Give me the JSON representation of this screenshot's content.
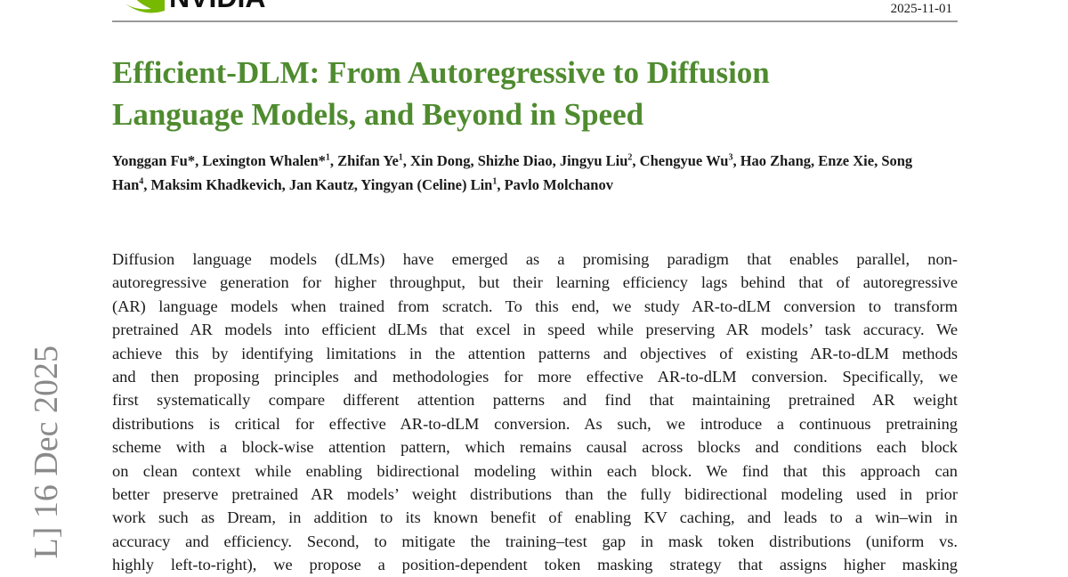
{
  "header": {
    "logo": "NVIDIA",
    "date": "2025-11-01"
  },
  "side_stamp": "L] 16 Dec 2025",
  "title": {
    "lines": [
      "Efficient-DLM: From Autoregressive to Diffusion",
      "Language Models, and Beyond in Speed"
    ]
  },
  "authors": [
    {
      "text": "Yonggan Fu*, Lexington Whalen*"
    },
    {
      "sup": "1"
    },
    {
      "text": ", Zhifan Ye"
    },
    {
      "sup": "1"
    },
    {
      "text": ", Xin Dong, Shizhe Diao, Jingyu Liu"
    },
    {
      "sup": "2"
    },
    {
      "text": ", Chengyue Wu"
    },
    {
      "sup": "3"
    },
    {
      "text": ", Hao Zhang, Enze Xie, Song Han"
    },
    {
      "sup": "4"
    },
    {
      "text": ", Maksim Khadkevich, Jan Kautz, Yingyan (Celine) Lin"
    },
    {
      "sup": "1"
    },
    {
      "text": ", Pavlo Molchanov"
    }
  ],
  "abstract": {
    "lines": [
      "Diffusion language models (dLMs) have emerged as a promising paradigm that enables parallel, non-",
      "autoregressive generation for higher throughput, but their learning efficiency lags behind that of autoregressive",
      "(AR) language models when trained from scratch. To this end, we study AR-to-dLM conversion to transform",
      "pretrained AR models into efficient dLMs that excel in speed while preserving AR models’ task accuracy. We",
      "achieve this by identifying limitations in the attention patterns and objectives of existing AR-to-dLM methods",
      "and then proposing principles and methodologies for more effective AR-to-dLM conversion. Specifically, we",
      "first systematically compare different attention patterns and find that maintaining pretrained AR weight",
      "distributions is critical for effective AR-to-dLM conversion. As such, we introduce a continuous pretraining",
      "scheme with a block-wise attention pattern, which remains causal across blocks and conditions each block",
      "on clean context while enabling bidirectional modeling within each block. We find that this approach can",
      "better preserve pretrained AR models’ weight distributions than the fully bidirectional modeling used in prior",
      "work such as Dream, in addition to its known benefit of enabling KV caching, and leads to a win–win in",
      "accuracy and efficiency. Second, to mitigate the training–test gap in mask token distributions (uniform vs.",
      "highly left-to-right), we propose a position-dependent token masking strategy that assigns higher masking"
    ]
  }
}
